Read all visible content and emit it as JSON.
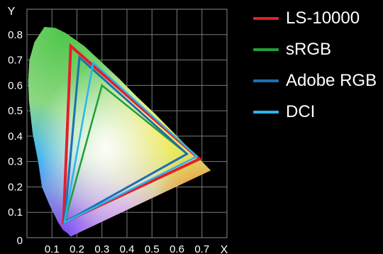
{
  "chart_data": {
    "type": "scatter",
    "title": "",
    "xlabel": "X",
    "ylabel": "Y",
    "xlim": [
      0,
      0.8
    ],
    "ylim": [
      0,
      0.9
    ],
    "x_ticks": [
      "0.1",
      "0.2",
      "0.3",
      "0.4",
      "0.5",
      "0.6",
      "0.7"
    ],
    "y_ticks": [
      "0",
      "0.1",
      "0.2",
      "0.3",
      "0.4",
      "0.5",
      "0.6",
      "0.7",
      "0.8"
    ],
    "grid": true,
    "legend_position": "right",
    "spectral_locus": [
      [
        0.175,
        0.005
      ],
      [
        0.17,
        0.01
      ],
      [
        0.16,
        0.02
      ],
      [
        0.145,
        0.03
      ],
      [
        0.125,
        0.06
      ],
      [
        0.09,
        0.13
      ],
      [
        0.06,
        0.2
      ],
      [
        0.045,
        0.3
      ],
      [
        0.023,
        0.41
      ],
      [
        0.008,
        0.54
      ],
      [
        0.005,
        0.62
      ],
      [
        0.01,
        0.7
      ],
      [
        0.03,
        0.77
      ],
      [
        0.07,
        0.83
      ],
      [
        0.114,
        0.826
      ],
      [
        0.155,
        0.806
      ],
      [
        0.23,
        0.754
      ],
      [
        0.3,
        0.69
      ],
      [
        0.37,
        0.625
      ],
      [
        0.44,
        0.555
      ],
      [
        0.51,
        0.49
      ],
      [
        0.575,
        0.425
      ],
      [
        0.64,
        0.36
      ],
      [
        0.69,
        0.31
      ],
      [
        0.735,
        0.265
      ]
    ],
    "series": [
      {
        "name": "LS-10000",
        "color": "#e31e2d",
        "points": [
          [
            0.175,
            0.755
          ],
          [
            0.69,
            0.31
          ],
          [
            0.146,
            0.06
          ]
        ]
      },
      {
        "name": "sRGB",
        "color": "#1f9e3a",
        "points": [
          [
            0.3,
            0.6
          ],
          [
            0.64,
            0.33
          ],
          [
            0.15,
            0.06
          ]
        ]
      },
      {
        "name": "Adobe RGB",
        "color": "#1e6fb0",
        "points": [
          [
            0.21,
            0.71
          ],
          [
            0.64,
            0.33
          ],
          [
            0.15,
            0.06
          ]
        ]
      },
      {
        "name": "DCI",
        "color": "#29b6e8",
        "points": [
          [
            0.265,
            0.69
          ],
          [
            0.68,
            0.32
          ],
          [
            0.15,
            0.06
          ]
        ]
      }
    ]
  }
}
